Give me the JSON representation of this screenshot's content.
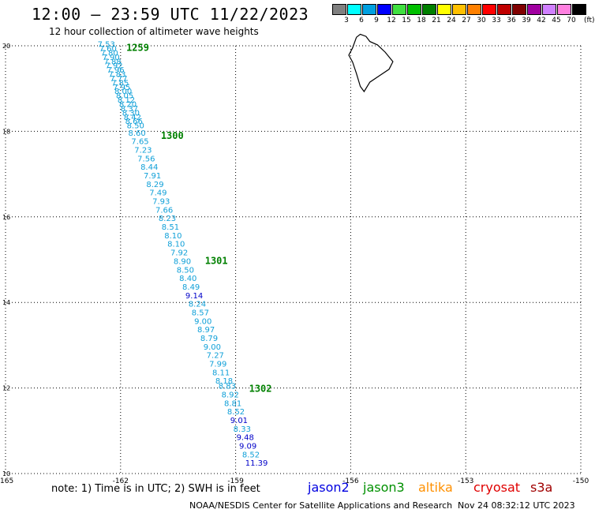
{
  "header": {
    "title": "12:00 – 23:59 UTC 11/22/2023",
    "subtitle": "12 hour collection of altimeter wave heights"
  },
  "legend": {
    "unit": "(ft)",
    "bins": [
      {
        "label": "3",
        "color": "#808080"
      },
      {
        "label": "6",
        "color": "#00ffff"
      },
      {
        "label": "9",
        "color": "#00a0e0"
      },
      {
        "label": "12",
        "color": "#0000ff"
      },
      {
        "label": "15",
        "color": "#40e040"
      },
      {
        "label": "18",
        "color": "#00c000"
      },
      {
        "label": "21",
        "color": "#008000"
      },
      {
        "label": "24",
        "color": "#ffff00"
      },
      {
        "label": "27",
        "color": "#ffc000"
      },
      {
        "label": "30",
        "color": "#ff8000"
      },
      {
        "label": "33",
        "color": "#ff0000"
      },
      {
        "label": "36",
        "color": "#c00000"
      },
      {
        "label": "39",
        "color": "#800000"
      },
      {
        "label": "42",
        "color": "#a000a0"
      },
      {
        "label": "45",
        "color": "#d080ff"
      },
      {
        "label": "70",
        "color": "#ff80e0"
      },
      {
        "label": "",
        "color": "#000000"
      }
    ]
  },
  "map": {
    "lon_range": [
      -165,
      -150
    ],
    "lat_range": [
      10,
      20
    ],
    "x_ticks": [
      "-165",
      "-162",
      "-159",
      "-156",
      "-153",
      "-150"
    ],
    "y_ticks": [
      "10",
      "12",
      "14",
      "16",
      "18",
      "20"
    ],
    "colors": {
      "light": "#10a0d8",
      "dark": "#0000c8",
      "time": "#008000",
      "grid": "#000000"
    }
  },
  "track": {
    "times": [
      {
        "label": "1259",
        "lon": -161.85,
        "lat": 19.95
      },
      {
        "label": "1300",
        "lon": -160.95,
        "lat": 17.9
      },
      {
        "label": "1301",
        "lon": -159.8,
        "lat": 14.97
      },
      {
        "label": "1302",
        "lon": -158.65,
        "lat": 11.98
      }
    ],
    "points": [
      {
        "v": "7.53",
        "lon": -162.6,
        "lat": 19.97
      },
      {
        "v": "7.60",
        "lon": -162.56,
        "lat": 19.87
      },
      {
        "v": "7.80",
        "lon": -162.52,
        "lat": 19.77
      },
      {
        "v": "7.90",
        "lon": -162.48,
        "lat": 19.67
      },
      {
        "v": "7.88",
        "lon": -162.44,
        "lat": 19.57
      },
      {
        "v": "7.92",
        "lon": -162.4,
        "lat": 19.47
      },
      {
        "v": "7.96",
        "lon": -162.36,
        "lat": 19.37
      },
      {
        "v": "7.83",
        "lon": -162.32,
        "lat": 19.27
      },
      {
        "v": "7.77",
        "lon": -162.28,
        "lat": 19.17
      },
      {
        "v": "7.85",
        "lon": -162.24,
        "lat": 19.07
      },
      {
        "v": "7.95",
        "lon": -162.2,
        "lat": 18.97
      },
      {
        "v": "8.00",
        "lon": -162.16,
        "lat": 18.87
      },
      {
        "v": "8.05",
        "lon": -162.12,
        "lat": 18.77
      },
      {
        "v": "8.12",
        "lon": -162.08,
        "lat": 18.67
      },
      {
        "v": "8.20",
        "lon": -162.04,
        "lat": 18.57
      },
      {
        "v": "8.37",
        "lon": -162.0,
        "lat": 18.47
      },
      {
        "v": "8.30",
        "lon": -161.96,
        "lat": 18.37
      },
      {
        "v": "8.42",
        "lon": -161.92,
        "lat": 18.27
      },
      {
        "v": "8.66",
        "lon": -161.88,
        "lat": 18.17
      },
      {
        "v": "8.50",
        "lon": -161.84,
        "lat": 18.07
      },
      {
        "v": "8.60",
        "lon": -161.8,
        "lat": 17.9
      },
      {
        "v": "7.65",
        "lon": -161.72,
        "lat": 17.7
      },
      {
        "v": "7.23",
        "lon": -161.64,
        "lat": 17.5
      },
      {
        "v": "7.56",
        "lon": -161.56,
        "lat": 17.3
      },
      {
        "v": "8.44",
        "lon": -161.48,
        "lat": 17.1
      },
      {
        "v": "7.91",
        "lon": -161.4,
        "lat": 16.9
      },
      {
        "v": "8.29",
        "lon": -161.33,
        "lat": 16.7
      },
      {
        "v": "7.49",
        "lon": -161.25,
        "lat": 16.5
      },
      {
        "v": "7.93",
        "lon": -161.17,
        "lat": 16.3
      },
      {
        "v": "7.66",
        "lon": -161.09,
        "lat": 16.1
      },
      {
        "v": "8.23",
        "lon": -161.01,
        "lat": 15.9
      },
      {
        "v": "8.51",
        "lon": -160.93,
        "lat": 15.7
      },
      {
        "v": "8.10",
        "lon": -160.86,
        "lat": 15.5
      },
      {
        "v": "8.10",
        "lon": -160.78,
        "lat": 15.3
      },
      {
        "v": "7.92",
        "lon": -160.7,
        "lat": 15.1
      },
      {
        "v": "8.90",
        "lon": -160.62,
        "lat": 14.9
      },
      {
        "v": "8.50",
        "lon": -160.54,
        "lat": 14.7
      },
      {
        "v": "8.40",
        "lon": -160.47,
        "lat": 14.5
      },
      {
        "v": "8.49",
        "lon": -160.39,
        "lat": 14.3
      },
      {
        "v": "9.14",
        "lon": -160.31,
        "lat": 14.1,
        "dark": true
      },
      {
        "v": "8.24",
        "lon": -160.23,
        "lat": 13.9
      },
      {
        "v": "8.57",
        "lon": -160.15,
        "lat": 13.7
      },
      {
        "v": "9.00",
        "lon": -160.08,
        "lat": 13.5
      },
      {
        "v": "8.97",
        "lon": -160.0,
        "lat": 13.3
      },
      {
        "v": "8.79",
        "lon": -159.92,
        "lat": 13.1
      },
      {
        "v": "9.00",
        "lon": -159.84,
        "lat": 12.9
      },
      {
        "v": "7.27",
        "lon": -159.76,
        "lat": 12.7
      },
      {
        "v": "7.99",
        "lon": -159.69,
        "lat": 12.5
      },
      {
        "v": "8.11",
        "lon": -159.61,
        "lat": 12.3
      },
      {
        "v": "8.18",
        "lon": -159.53,
        "lat": 12.1
      },
      {
        "v": "8.83",
        "lon": -159.45,
        "lat": 11.98
      },
      {
        "v": "8.92",
        "lon": -159.37,
        "lat": 11.78
      },
      {
        "v": "8.81",
        "lon": -159.3,
        "lat": 11.58
      },
      {
        "v": "8.52",
        "lon": -159.22,
        "lat": 11.38
      },
      {
        "v": "9.01",
        "lon": -159.14,
        "lat": 11.18,
        "dark": true
      },
      {
        "v": "8.33",
        "lon": -159.06,
        "lat": 10.98
      },
      {
        "v": "9.48",
        "lon": -158.98,
        "lat": 10.78,
        "dark": true
      },
      {
        "v": "9.09",
        "lon": -158.91,
        "lat": 10.58,
        "dark": true
      },
      {
        "v": "8.52",
        "lon": -158.83,
        "lat": 10.38
      },
      {
        "v": "11.39",
        "lon": -158.75,
        "lat": 10.18,
        "dark": true
      }
    ]
  },
  "island": {
    "name": "",
    "outline": [
      [
        -155.85,
        20.2
      ],
      [
        -155.75,
        20.27
      ],
      [
        -155.6,
        20.22
      ],
      [
        -155.5,
        20.1
      ],
      [
        -155.3,
        20.02
      ],
      [
        -155.1,
        19.85
      ],
      [
        -154.9,
        19.63
      ],
      [
        -155.0,
        19.45
      ],
      [
        -155.25,
        19.3
      ],
      [
        -155.5,
        19.15
      ],
      [
        -155.65,
        18.93
      ],
      [
        -155.75,
        19.05
      ],
      [
        -155.85,
        19.35
      ],
      [
        -155.95,
        19.62
      ],
      [
        -156.05,
        19.78
      ],
      [
        -155.95,
        19.95
      ],
      [
        -155.85,
        20.2
      ]
    ]
  },
  "footer": {
    "note": "note:  1) Time is in UTC; 2) SWH is in feet",
    "sats": [
      {
        "label": "jason2",
        "color": "#0000e0"
      },
      {
        "label": "jason3",
        "color": "#009000"
      },
      {
        "label": "altika",
        "color": "#ff9000"
      },
      {
        "label": "cryosat",
        "color": "#e00000"
      },
      {
        "label": "s3a",
        "color": "#a00000"
      }
    ],
    "credit": "NOAA/NESDIS Center for Satellite Applications and Research",
    "stamp": "Nov 24 08:32:12 UTC 2023"
  }
}
